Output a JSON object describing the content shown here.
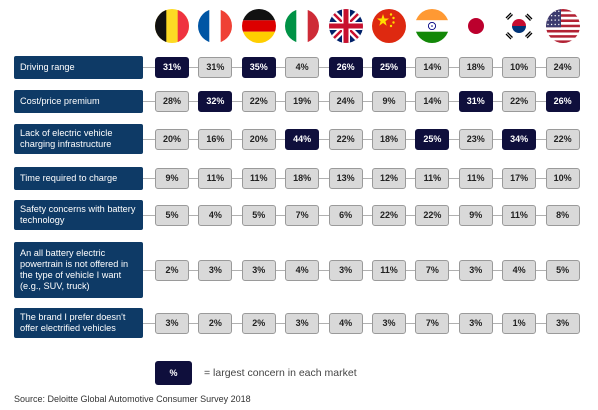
{
  "chart_data": {
    "type": "table",
    "title": "",
    "markets": [
      {
        "flag": "belgium-flag-icon"
      },
      {
        "flag": "france-flag-icon"
      },
      {
        "flag": "germany-flag-icon"
      },
      {
        "flag": "italy-flag-icon"
      },
      {
        "flag": "uk-flag-icon"
      },
      {
        "flag": "china-flag-icon"
      },
      {
        "flag": "india-flag-icon"
      },
      {
        "flag": "japan-flag-icon"
      },
      {
        "flag": "south-korea-flag-icon"
      },
      {
        "flag": "usa-flag-icon"
      }
    ],
    "rows": [
      {
        "label": "Driving range",
        "values": [
          "31%",
          "31%",
          "35%",
          "4%",
          "26%",
          "25%",
          "14%",
          "18%",
          "10%",
          "24%"
        ],
        "highlight": [
          true,
          false,
          true,
          false,
          true,
          true,
          false,
          false,
          false,
          false
        ]
      },
      {
        "label": "Cost/price premium",
        "values": [
          "28%",
          "32%",
          "22%",
          "19%",
          "24%",
          "9%",
          "14%",
          "31%",
          "22%",
          "26%"
        ],
        "highlight": [
          false,
          true,
          false,
          false,
          false,
          false,
          false,
          true,
          false,
          true
        ]
      },
      {
        "label": "Lack of electric vehicle charging infrastructure",
        "values": [
          "20%",
          "16%",
          "20%",
          "44%",
          "22%",
          "18%",
          "25%",
          "23%",
          "34%",
          "22%"
        ],
        "highlight": [
          false,
          false,
          false,
          true,
          false,
          false,
          true,
          false,
          true,
          false
        ]
      },
      {
        "label": "Time required to charge",
        "values": [
          "9%",
          "11%",
          "11%",
          "18%",
          "13%",
          "12%",
          "11%",
          "11%",
          "17%",
          "10%"
        ],
        "highlight": [
          false,
          false,
          false,
          false,
          false,
          false,
          false,
          false,
          false,
          false
        ]
      },
      {
        "label": "Safety concerns with battery technology",
        "values": [
          "5%",
          "4%",
          "5%",
          "7%",
          "6%",
          "22%",
          "22%",
          "9%",
          "11%",
          "8%"
        ],
        "highlight": [
          false,
          false,
          false,
          false,
          false,
          false,
          false,
          false,
          false,
          false
        ]
      },
      {
        "label": "An all battery electric powertrain is not offered in the type of vehicle I want (e.g., SUV, truck)",
        "values": [
          "2%",
          "3%",
          "3%",
          "4%",
          "3%",
          "11%",
          "7%",
          "3%",
          "4%",
          "5%"
        ],
        "highlight": [
          false,
          false,
          false,
          false,
          false,
          false,
          false,
          false,
          false,
          false
        ]
      },
      {
        "label": "The brand I prefer doesn't offer electrified vehicles",
        "values": [
          "3%",
          "2%",
          "2%",
          "3%",
          "4%",
          "3%",
          "7%",
          "3%",
          "1%",
          "3%"
        ],
        "highlight": [
          false,
          false,
          false,
          false,
          false,
          false,
          false,
          false,
          false,
          false
        ]
      }
    ],
    "legend": {
      "symbol": "%",
      "text": "= largest concern in each market"
    },
    "colors": {
      "label_bg": "#0e3a66",
      "highlight": "#0f0f3c",
      "cell": "#d9d9d9"
    }
  },
  "source": "Source: Deloitte Global Automotive Consumer Survey 2018"
}
